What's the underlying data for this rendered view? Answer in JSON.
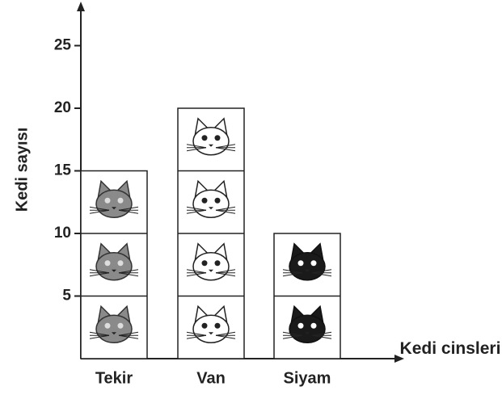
{
  "chart_data": {
    "type": "pictograph",
    "ylabel": "Kedi sayısı",
    "xlabel": "Kedi cinsleri",
    "categories": [
      "Tekir",
      "Van",
      "Siyam"
    ],
    "values": [
      15,
      20,
      10
    ],
    "ylim": [
      0,
      28
    ],
    "yticks": [
      5,
      10,
      15,
      20,
      25
    ]
  }
}
